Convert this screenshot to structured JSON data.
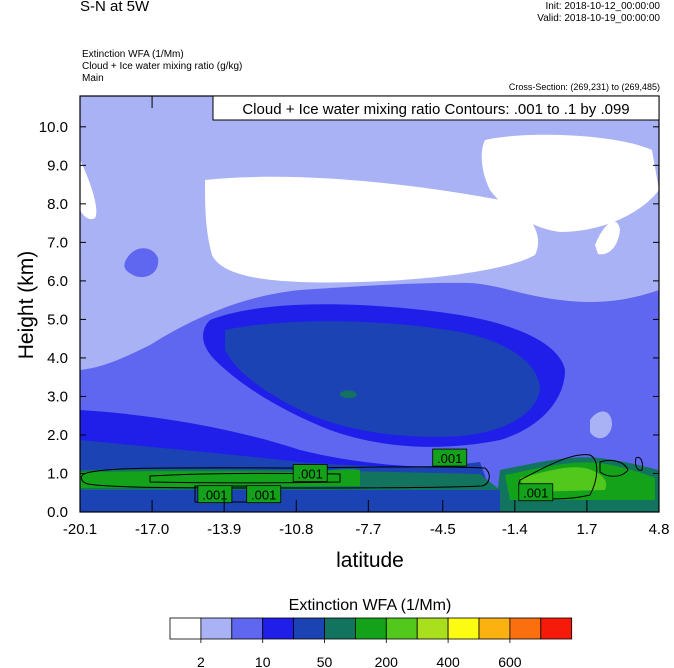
{
  "header": {
    "title": "S-N at 5W",
    "init": "Init: 2018-10-12_00:00:00",
    "valid": "Valid: 2018-10-19_00:00:00",
    "info_lines": [
      "Extinction WFA   (1/Mm)",
      "Cloud + Ice water mixing ratio   (g/kg)",
      "Main"
    ],
    "cross_section": "Cross-Section: (269,231) to (269,485)"
  },
  "colors": {
    "levels": [
      "#ffffff",
      "#a9b2f5",
      "#5f66ef",
      "#1f1fe9",
      "#1c43b3",
      "#12735f",
      "#13a21a",
      "#52c81c",
      "#a9df1c",
      "#fcfc12",
      "#fbb10f",
      "#fa6f0e",
      "#f51a0a"
    ],
    "contour": "#000000"
  },
  "chart_data": {
    "type": "heatmap",
    "xlabel": "latitude",
    "ylabel": "Height (km)",
    "xlim": [
      -20.1,
      4.8
    ],
    "ylim": [
      0.0,
      10.8
    ],
    "x_ticks": [
      "-20.1",
      "-17.0",
      "-13.9",
      "-10.8",
      "-7.7",
      "-4.5",
      "-1.4",
      "1.7",
      "4.8"
    ],
    "x_tick_values": [
      -20.1,
      -17.0,
      -13.9,
      -10.8,
      -7.7,
      -4.5,
      -1.4,
      1.7,
      4.8
    ],
    "y_ticks": [
      "0.0",
      "1.0",
      "2.0",
      "3.0",
      "4.0",
      "5.0",
      "6.0",
      "7.0",
      "8.0",
      "9.0",
      "10.0"
    ],
    "y_tick_values": [
      0,
      1,
      2,
      3,
      4,
      5,
      6,
      7,
      8,
      9,
      10
    ],
    "contour_title": "Cloud + Ice water mixing ratio Contours: .001 to .1 by .099",
    "contour_labels": [
      {
        "text": ".001",
        "x": -14.3,
        "y": 0.45
      },
      {
        "text": ".001",
        "x": -12.2,
        "y": 0.45
      },
      {
        "text": ".001",
        "x": -10.2,
        "y": 1.0
      },
      {
        "text": ".001",
        "x": -4.2,
        "y": 1.4
      },
      {
        "text": ".001",
        "x": -0.5,
        "y": 0.5
      }
    ],
    "colorbar": {
      "title": "Extinction WFA  (1/Mm)",
      "tick_labels": [
        "2",
        "10",
        "50",
        "200",
        "400",
        "600"
      ]
    }
  }
}
